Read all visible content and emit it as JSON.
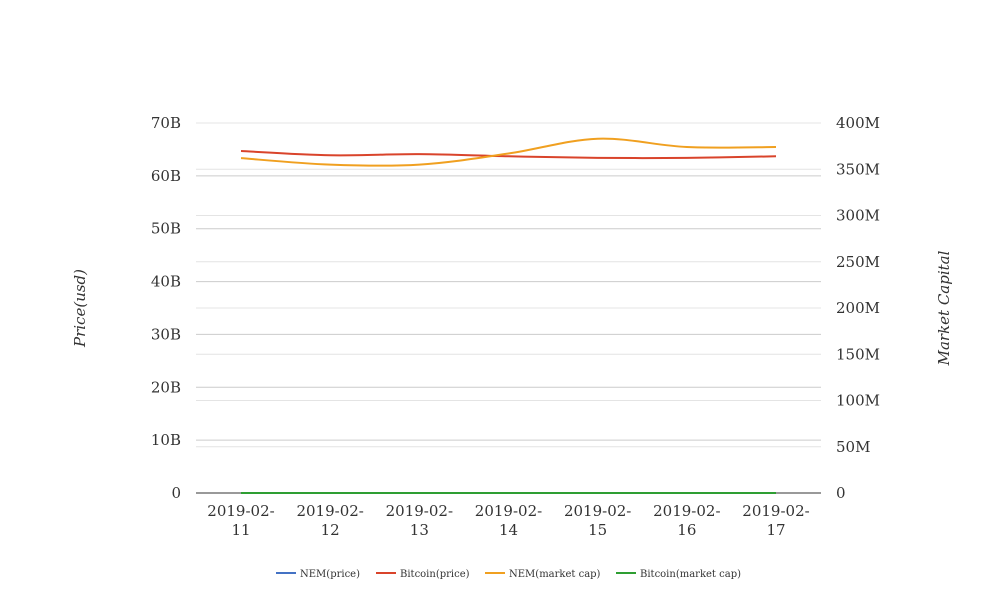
{
  "chart_data": {
    "type": "line",
    "title": "",
    "x": [
      "2019-02-11",
      "2019-02-12",
      "2019-02-13",
      "2019-02-14",
      "2019-02-15",
      "2019-02-16",
      "2019-02-17"
    ],
    "x_tick_labels": [
      [
        "2019-02-",
        "11"
      ],
      [
        "2019-02-",
        "12"
      ],
      [
        "2019-02-",
        "13"
      ],
      [
        "2019-02-",
        "14"
      ],
      [
        "2019-02-",
        "15"
      ],
      [
        "2019-02-",
        "16"
      ],
      [
        "2019-02-",
        "17"
      ]
    ],
    "y_left": {
      "label": "Price(usd)",
      "ticks": [
        "0",
        "10B",
        "20B",
        "30B",
        "40B",
        "50B",
        "60B",
        "70B"
      ],
      "ylim": [
        0,
        70000000000
      ]
    },
    "y_right": {
      "label": "Market Capital",
      "ticks": [
        "0",
        "50M",
        "100M",
        "150M",
        "200M",
        "250M",
        "300M",
        "350M",
        "400M"
      ],
      "ylim": [
        0,
        400000000
      ]
    },
    "grid": true,
    "legend_position": "bottom-center",
    "series": [
      {
        "name": "NEM(price)",
        "axis": "left",
        "color": "#4472c4",
        "values": [
          0.05,
          0.05,
          0.05,
          0.05,
          0.05,
          0.05,
          0.05
        ]
      },
      {
        "name": "Bitcoin(price)",
        "axis": "left",
        "color": "#d9442b",
        "values": [
          64700000000,
          63900000000,
          64100000000,
          63700000000,
          63400000000,
          63400000000,
          63700000000
        ]
      },
      {
        "name": "NEM(market cap)",
        "axis": "right",
        "color": "#f0a020",
        "values": [
          362000000,
          355000000,
          355000000,
          367000000,
          383000000,
          374000000,
          374000000
        ]
      },
      {
        "name": "Bitcoin(market cap)",
        "axis": "right",
        "color": "#2e9e32",
        "values": [
          1.0,
          1.0,
          1.0,
          1.0,
          1.0,
          1.0,
          1.0
        ]
      }
    ]
  }
}
